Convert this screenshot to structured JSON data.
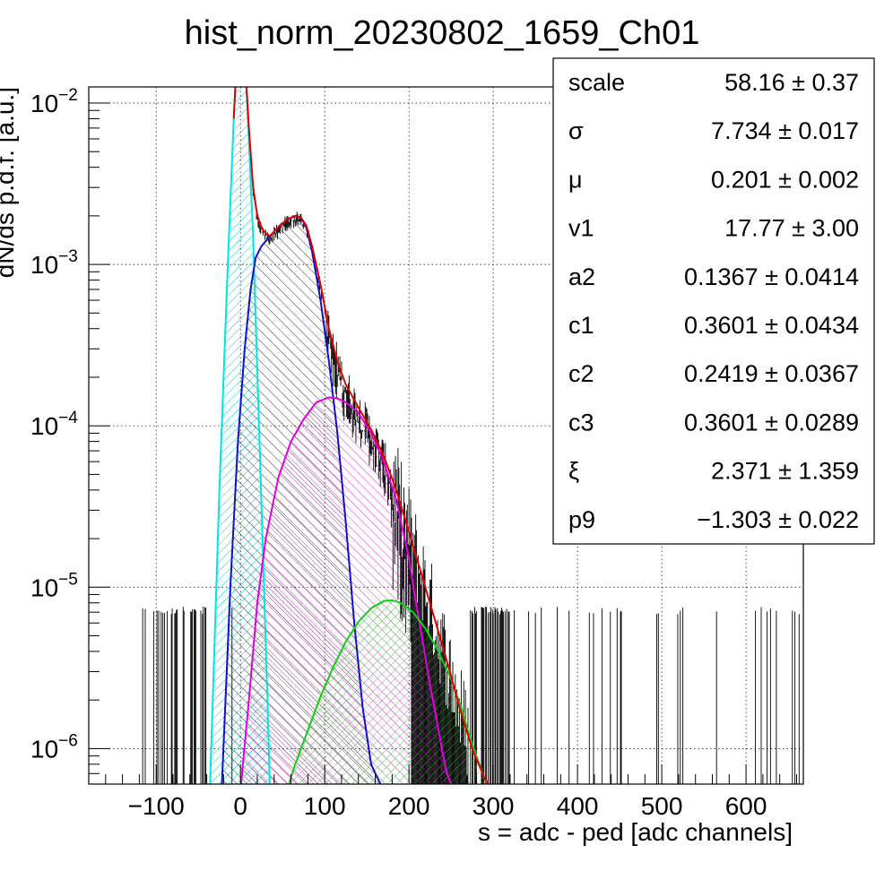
{
  "chart_data": {
    "type": "line",
    "title": "hist_norm_20230802_1659_Ch01",
    "xlabel": "s = adc - ped [adc channels]",
    "ylabel": "dN/ds p.d.f. [a.u.]",
    "xlim": [
      -180,
      668
    ],
    "ylim_log10": [
      -6.22,
      -1.9
    ],
    "log_y": true,
    "grid": true,
    "x_ticks": [
      -100,
      0,
      100,
      200,
      300,
      400,
      500,
      600
    ],
    "x_tick_labels": [
      "−100",
      "0",
      "100",
      "200",
      "300",
      "400",
      "500",
      "600"
    ],
    "y_ticks": [
      {
        "base": "10",
        "exp": "−2",
        "log10": -2
      },
      {
        "base": "10",
        "exp": "−3",
        "log10": -3
      },
      {
        "base": "10",
        "exp": "−4",
        "log10": -4
      },
      {
        "base": "10",
        "exp": "−5",
        "log10": -5
      },
      {
        "base": "10",
        "exp": "−6",
        "log10": -6
      }
    ],
    "fit_params": [
      {
        "name": "scale",
        "value": "58.16 ± 0.37"
      },
      {
        "name": "σ",
        "value": "7.734 ± 0.017"
      },
      {
        "name": "μ",
        "value": "0.201 ± 0.002"
      },
      {
        "name": "v1",
        "value": "17.77 ± 3.00"
      },
      {
        "name": "a2",
        "value": "0.1367 ± 0.0414"
      },
      {
        "name": "c1",
        "value": "0.3601 ± 0.0434"
      },
      {
        "name": "c2",
        "value": "0.2419 ± 0.0367"
      },
      {
        "name": "c3",
        "value": "0.3601 ± 0.0289"
      },
      {
        "name": "ξ",
        "value": "2.371 ± 1.359"
      },
      {
        "name": "p9",
        "value": "−1.303 ± 0.022"
      }
    ],
    "series": [
      {
        "color": "#00e5e5",
        "hatch": "cyan",
        "x": [
          -36,
          -25,
          -15,
          -8,
          -3,
          0,
          3,
          8,
          15,
          22,
          28,
          32,
          35
        ],
        "y": [
          6e-07,
          4e-05,
          0.001,
          0.008,
          0.026,
          0.039,
          0.03,
          0.01,
          0.0015,
          0.0001,
          1e-05,
          2e-06,
          5.5e-07
        ]
      },
      {
        "color": "#1010cc",
        "hatch": "black",
        "x": [
          -22,
          -12,
          -3,
          5,
          12,
          18,
          25,
          35,
          45,
          55,
          65,
          72,
          78,
          85,
          95,
          105,
          115,
          125,
          135,
          145,
          155,
          163,
          170
        ],
        "y": [
          6e-07,
          1e-05,
          8e-05,
          0.0003,
          0.0007,
          0.0011,
          0.0013,
          0.0015,
          0.0017,
          0.0019,
          0.002,
          0.00195,
          0.0017,
          0.0012,
          0.0006,
          0.00025,
          9e-05,
          2.5e-05,
          6e-06,
          1.8e-06,
          8e-07,
          6.5e-07,
          5.5e-07
        ]
      },
      {
        "color": "#e000e0",
        "hatch": "magenta",
        "x": [
          0,
          10,
          20,
          30,
          45,
          60,
          75,
          90,
          105,
          115,
          125,
          140,
          155,
          170,
          185,
          200,
          215,
          225,
          235,
          245,
          250,
          255
        ],
        "y": [
          5.5e-07,
          2e-06,
          8e-06,
          2e-05,
          4.8e-05,
          8e-05,
          0.00011,
          0.00014,
          0.00015,
          0.000148,
          0.00014,
          0.00012,
          9e-05,
          6e-05,
          3.5e-05,
          1.5e-05,
          5e-06,
          2.5e-06,
          1.3e-06,
          7e-07,
          6e-07,
          5.5e-07
        ]
      },
      {
        "color": "#10d010",
        "hatch": "green",
        "x": [
          55,
          65,
          80,
          95,
          110,
          125,
          140,
          155,
          170,
          180,
          190,
          205,
          220,
          235,
          250,
          262,
          270,
          280,
          290,
          298
        ],
        "y": [
          5.5e-07,
          8e-07,
          1.3e-06,
          2.1e-06,
          3.2e-06,
          4.6e-06,
          6.1e-06,
          7.4e-06,
          8.2e-06,
          8.3e-06,
          8e-06,
          7e-06,
          5.5e-06,
          4e-06,
          2.7e-06,
          1.8e-06,
          1.3e-06,
          9e-07,
          6.5e-07,
          5.5e-07
        ]
      },
      {
        "color": "#e00000",
        "hatch": "none",
        "x": [
          -8,
          -3,
          0,
          5,
          10,
          15,
          20,
          25,
          30,
          35,
          45,
          55,
          65,
          72,
          78,
          85,
          95,
          105,
          115,
          125,
          140,
          155,
          170,
          185,
          200,
          215,
          230,
          245,
          260,
          275,
          290,
          300
        ],
        "y": [
          0.008,
          0.026,
          0.04,
          0.02,
          0.007,
          0.003,
          0.002,
          0.0017,
          0.00155,
          0.0015,
          0.0017,
          0.0019,
          0.002,
          0.00195,
          0.00175,
          0.0013,
          0.00075,
          0.0004,
          0.00025,
          0.00018,
          0.00013,
          9.5e-05,
          6.5e-05,
          4e-05,
          2.2e-05,
          1.2e-05,
          6.5e-06,
          3.5e-06,
          1.8e-06,
          1e-06,
          6.5e-07,
          5.5e-07
        ]
      }
    ]
  }
}
